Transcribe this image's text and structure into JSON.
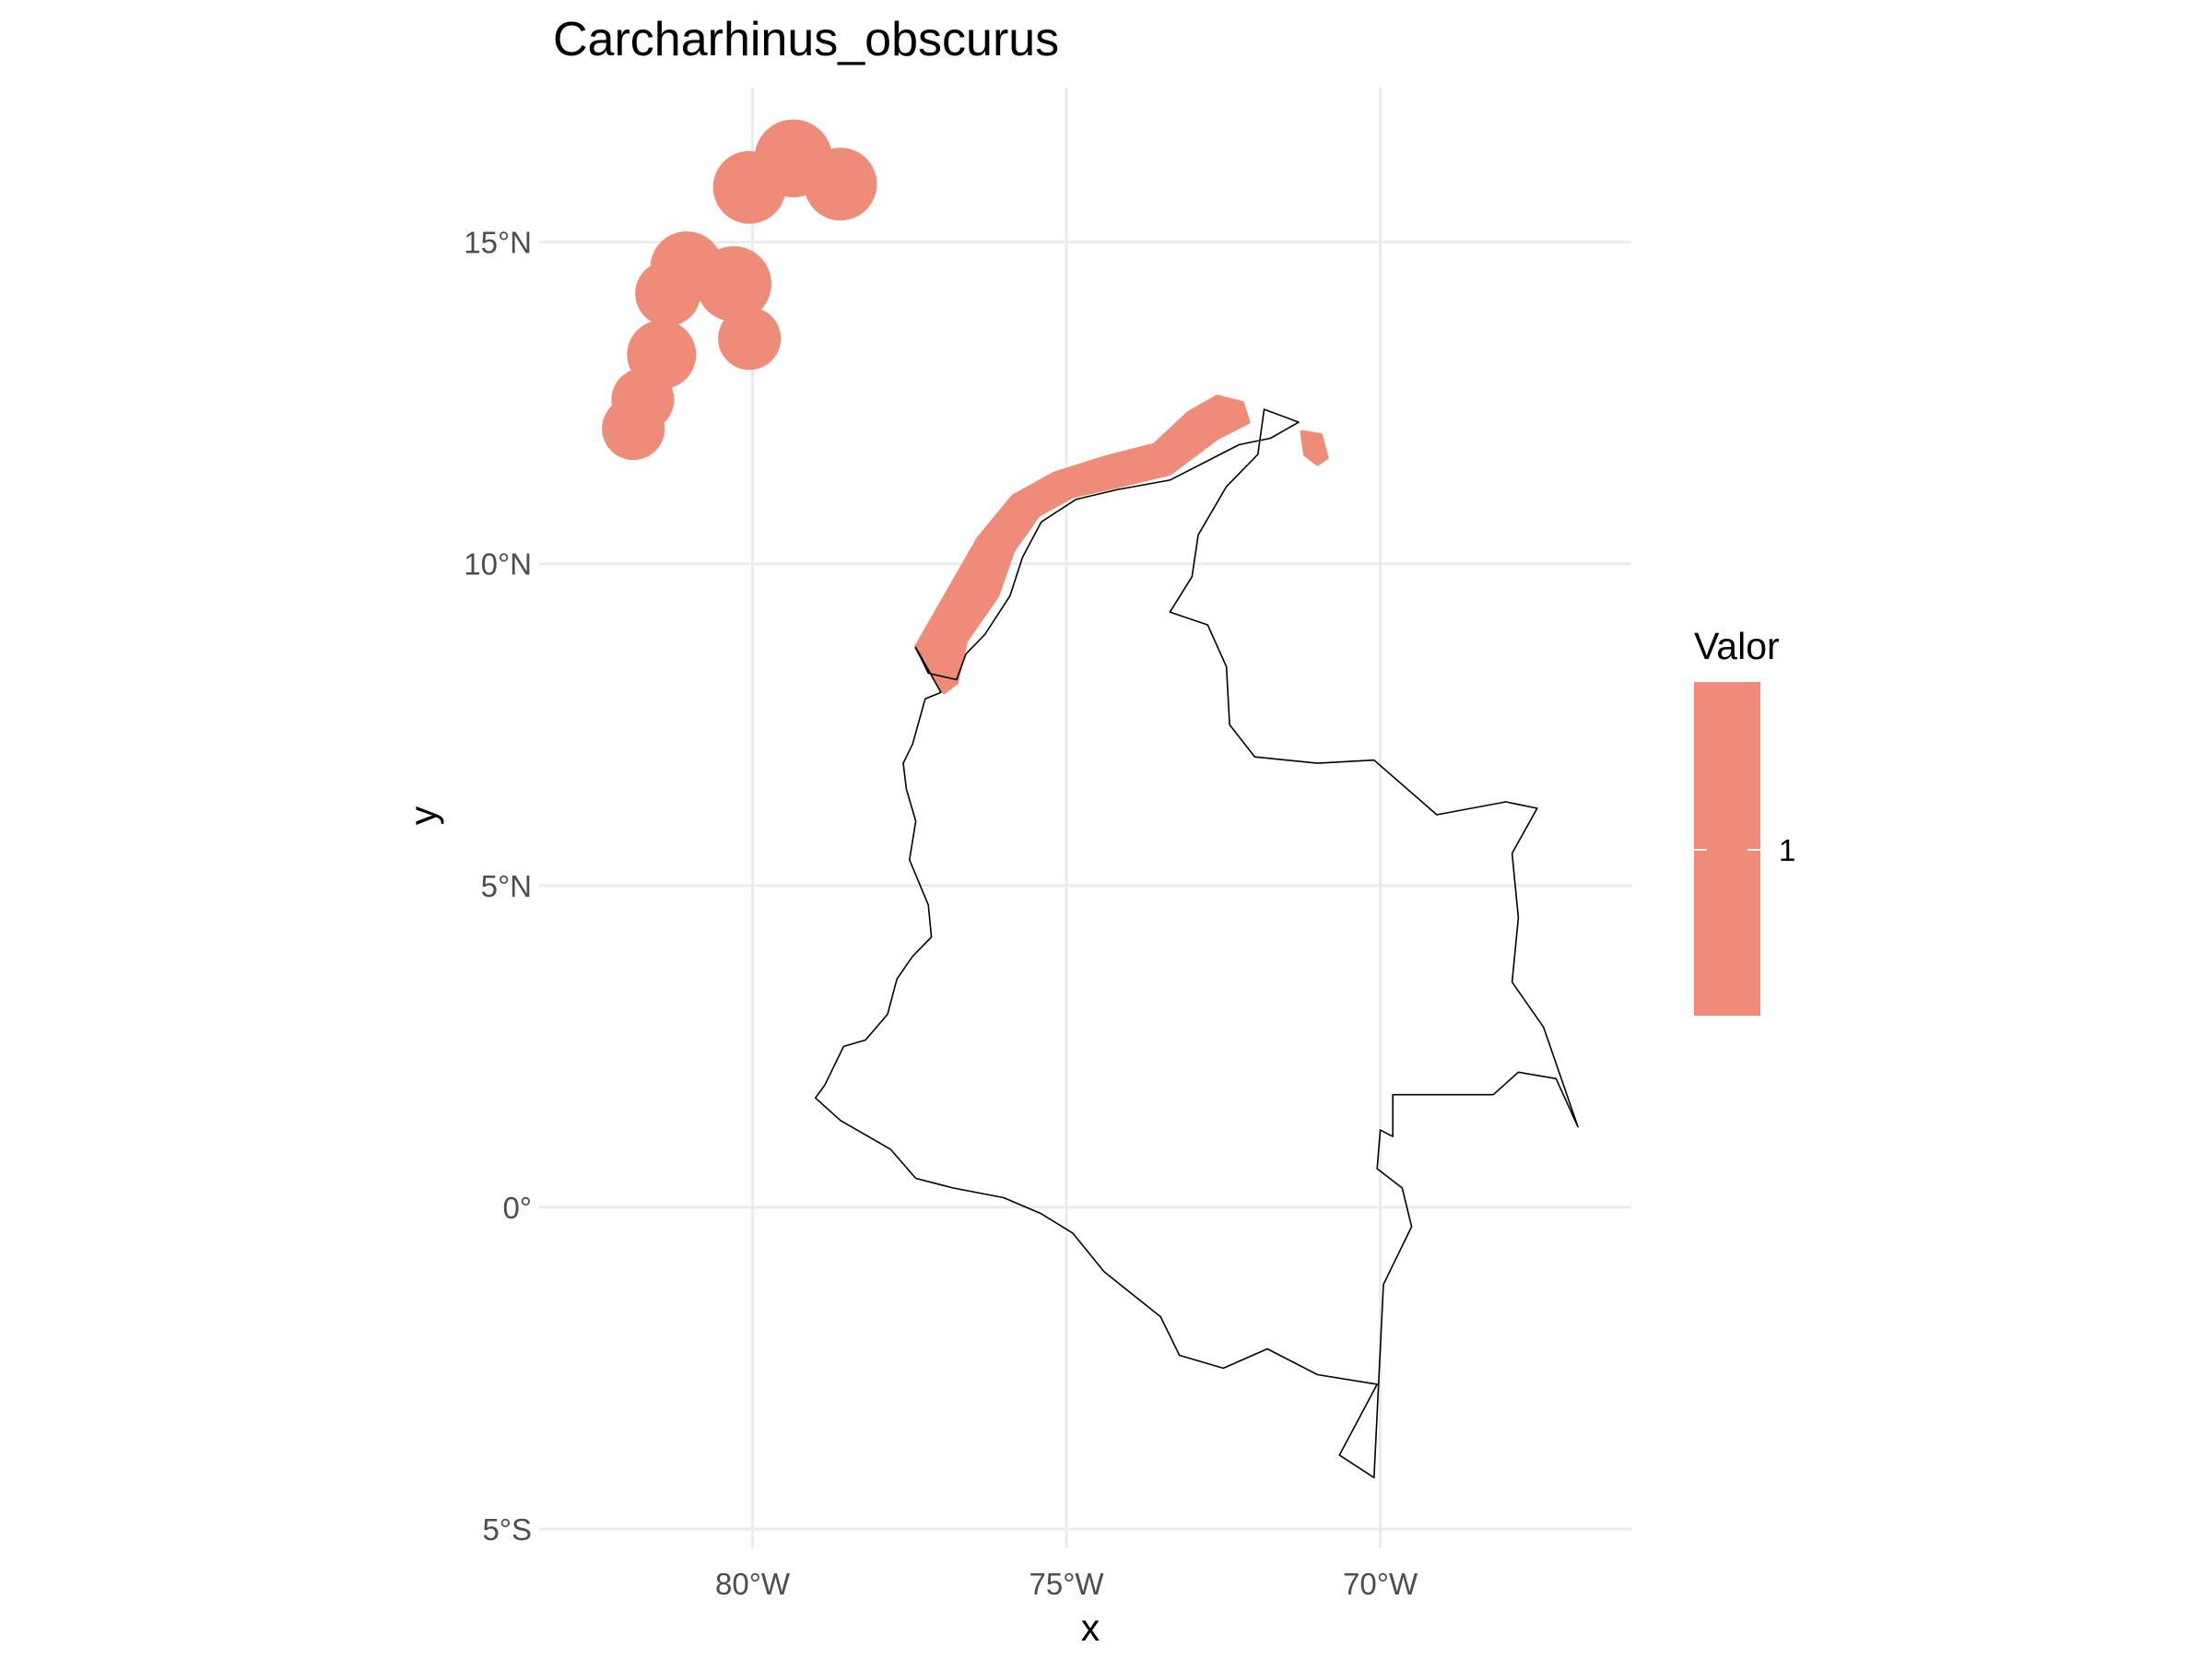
{
  "chart_data": {
    "type": "map",
    "title": "Carcharhinus_obscurus",
    "xlabel": "x",
    "ylabel": "y",
    "x_ticks": [
      {
        "value": -80,
        "label": "80°W"
      },
      {
        "value": -75,
        "label": "75°W"
      },
      {
        "value": -70,
        "label": "70°W"
      }
    ],
    "y_ticks": [
      {
        "value": -5,
        "label": "5°S"
      },
      {
        "value": 0,
        "label": "0°"
      },
      {
        "value": 5,
        "label": "5°N"
      },
      {
        "value": 10,
        "label": "10°N"
      },
      {
        "value": 15,
        "label": "15°N"
      }
    ],
    "xlim": [
      -83.4,
      -66.0
    ],
    "ylim": [
      -5.3,
      17.4
    ],
    "grid": true,
    "legend": {
      "title": "Valor",
      "placement": "right",
      "entries": [
        {
          "label": "1",
          "value": 1,
          "color": "#ee8c79"
        }
      ]
    },
    "layers": [
      {
        "name": "range",
        "fill": "#ee8c79",
        "circles": [
          {
            "lon": -79.35,
            "lat": 16.3,
            "r": 0.62
          },
          {
            "lon": -80.05,
            "lat": 15.85,
            "r": 0.58
          },
          {
            "lon": -78.6,
            "lat": 15.9,
            "r": 0.58
          },
          {
            "lon": -81.05,
            "lat": 14.6,
            "r": 0.58
          },
          {
            "lon": -81.35,
            "lat": 14.2,
            "r": 0.52
          },
          {
            "lon": -80.3,
            "lat": 14.35,
            "r": 0.6
          },
          {
            "lon": -80.05,
            "lat": 13.5,
            "r": 0.5
          },
          {
            "lon": -81.45,
            "lat": 13.25,
            "r": 0.55
          },
          {
            "lon": -81.75,
            "lat": 12.55,
            "r": 0.5
          },
          {
            "lon": -81.9,
            "lat": 12.1,
            "r": 0.5
          }
        ],
        "polygons": [
          [
            [
              -77.4,
              8.7
            ],
            [
              -76.9,
              9.55
            ],
            [
              -76.4,
              10.4
            ],
            [
              -75.85,
              11.05
            ],
            [
              -75.2,
              11.4
            ],
            [
              -74.4,
              11.65
            ],
            [
              -73.6,
              11.85
            ],
            [
              -73.05,
              12.35
            ],
            [
              -72.6,
              12.6
            ],
            [
              -72.2,
              12.5
            ],
            [
              -72.1,
              12.2
            ],
            [
              -72.6,
              11.95
            ],
            [
              -73.35,
              11.4
            ],
            [
              -74.2,
              11.2
            ],
            [
              -74.9,
              11.05
            ],
            [
              -75.45,
              10.75
            ],
            [
              -75.85,
              10.2
            ],
            [
              -76.1,
              9.5
            ],
            [
              -76.6,
              8.8
            ],
            [
              -76.75,
              8.15
            ],
            [
              -76.95,
              8.0
            ],
            [
              -77.15,
              8.3
            ]
          ],
          [
            [
              -71.25,
              12.05
            ],
            [
              -70.95,
              12.0
            ],
            [
              -70.85,
              11.65
            ],
            [
              -71.0,
              11.55
            ],
            [
              -71.2,
              11.7
            ]
          ]
        ]
      },
      {
        "name": "Colombia",
        "stroke": "#000000",
        "outline": [
          [
            -77.4,
            8.7
          ],
          [
            -77.0,
            8.0
          ],
          [
            -77.25,
            7.9
          ],
          [
            -77.45,
            7.2
          ],
          [
            -77.6,
            6.9
          ],
          [
            -77.55,
            6.5
          ],
          [
            -77.4,
            6.0
          ],
          [
            -77.5,
            5.4
          ],
          [
            -77.2,
            4.7
          ],
          [
            -77.15,
            4.2
          ],
          [
            -77.45,
            3.9
          ],
          [
            -77.7,
            3.55
          ],
          [
            -77.85,
            3.0
          ],
          [
            -78.2,
            2.6
          ],
          [
            -78.55,
            2.5
          ],
          [
            -78.85,
            1.9
          ],
          [
            -79.0,
            1.7
          ],
          [
            -78.6,
            1.35
          ],
          [
            -77.8,
            0.9
          ],
          [
            -77.4,
            0.45
          ],
          [
            -76.8,
            0.3
          ],
          [
            -76.0,
            0.15
          ],
          [
            -75.4,
            -0.1
          ],
          [
            -74.9,
            -0.4
          ],
          [
            -74.4,
            -1.0
          ],
          [
            -73.5,
            -1.7
          ],
          [
            -73.2,
            -2.3
          ],
          [
            -72.5,
            -2.5
          ],
          [
            -71.8,
            -2.2
          ],
          [
            -71.0,
            -2.6
          ],
          [
            -70.05,
            -2.75
          ],
          [
            -70.65,
            -3.85
          ],
          [
            -70.1,
            -4.2
          ],
          [
            -69.95,
            -1.2
          ],
          [
            -69.5,
            -0.3
          ],
          [
            -69.65,
            0.3
          ],
          [
            -70.05,
            0.6
          ],
          [
            -70.0,
            1.2
          ],
          [
            -69.8,
            1.1
          ],
          [
            -69.8,
            1.75
          ],
          [
            -68.2,
            1.75
          ],
          [
            -67.8,
            2.1
          ],
          [
            -67.2,
            2.0
          ],
          [
            -66.85,
            1.25
          ],
          [
            -67.4,
            2.8
          ],
          [
            -67.9,
            3.5
          ],
          [
            -67.8,
            4.5
          ],
          [
            -67.9,
            5.5
          ],
          [
            -67.5,
            6.2
          ],
          [
            -68.0,
            6.3
          ],
          [
            -69.1,
            6.1
          ],
          [
            -70.1,
            6.95
          ],
          [
            -71.0,
            6.9
          ],
          [
            -72.0,
            7.0
          ],
          [
            -72.4,
            7.5
          ],
          [
            -72.45,
            8.4
          ],
          [
            -72.75,
            9.05
          ],
          [
            -73.35,
            9.25
          ],
          [
            -73.0,
            9.8
          ],
          [
            -72.9,
            10.45
          ],
          [
            -72.45,
            11.2
          ],
          [
            -71.95,
            11.7
          ],
          [
            -71.85,
            12.4
          ],
          [
            -71.3,
            12.2
          ],
          [
            -71.75,
            11.95
          ],
          [
            -72.25,
            11.85
          ],
          [
            -73.35,
            11.3
          ],
          [
            -74.2,
            11.15
          ],
          [
            -74.85,
            11.0
          ],
          [
            -75.4,
            10.65
          ],
          [
            -75.7,
            10.1
          ],
          [
            -75.9,
            9.5
          ],
          [
            -76.3,
            8.9
          ],
          [
            -76.6,
            8.6
          ],
          [
            -76.75,
            8.2
          ],
          [
            -77.2,
            8.3
          ]
        ]
      }
    ]
  }
}
